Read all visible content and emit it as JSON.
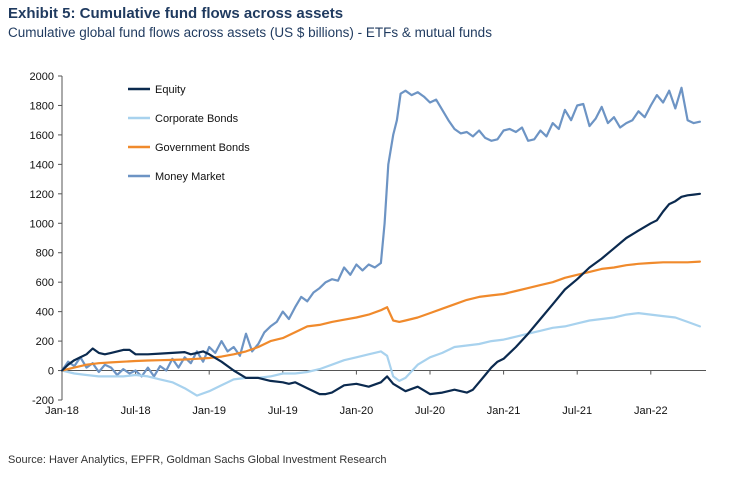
{
  "header": {
    "title": "Exhibit 5: Cumulative fund flows across assets",
    "subtitle": "Cumulative global fund flows across assets (US $ billions) - ETFs & mutual funds"
  },
  "footer": {
    "source": "Source: Haver Analytics, EPFR, Goldman Sachs Global Investment Research"
  },
  "chart_data": {
    "type": "line",
    "title": "Cumulative fund flows across assets",
    "ylabel": "US $ billions",
    "xlabel": "",
    "ylim": [
      -200,
      2000
    ],
    "yticks": [
      -200,
      0,
      200,
      400,
      600,
      800,
      1000,
      1200,
      1400,
      1600,
      1800,
      2000
    ],
    "ytick_labels": [
      "-200",
      "0",
      "200",
      "400",
      "600",
      "800",
      "1000",
      "1200",
      "1400",
      "1600",
      "1800",
      "2000"
    ],
    "x_range_months": [
      0,
      52.5
    ],
    "xtick_positions": [
      0,
      6,
      12,
      18,
      24,
      30,
      36,
      42,
      48
    ],
    "xtick_labels": [
      "Jan-18",
      "Jul-18",
      "Jan-19",
      "Jul-19",
      "Jan-20",
      "Jul-20",
      "Jan-21",
      "Jul-21",
      "Jan-22"
    ],
    "legend_position": "top-left",
    "series": [
      {
        "name": "Equity",
        "color": "#0b2a4f",
        "x": [
          0,
          0.5,
          1,
          1.5,
          2,
          2.5,
          3,
          3.5,
          4,
          4.5,
          5,
          5.5,
          6,
          7,
          8,
          9,
          10,
          10.5,
          11,
          11.5,
          12,
          13,
          14,
          15,
          16,
          17,
          18,
          18.5,
          19,
          20,
          21,
          21.5,
          22,
          23,
          24,
          25,
          26,
          26.5,
          27,
          28,
          29,
          30,
          31,
          32,
          33,
          33.5,
          34,
          34.5,
          35,
          35.5,
          36,
          36.5,
          37,
          38,
          39,
          40,
          41,
          42,
          43,
          44,
          45,
          46,
          47,
          48,
          48.5,
          49,
          49.5,
          50,
          50.5,
          51,
          51.5,
          52
        ],
        "values": [
          0,
          40,
          70,
          90,
          110,
          150,
          120,
          110,
          120,
          130,
          140,
          140,
          110,
          110,
          115,
          120,
          125,
          110,
          120,
          130,
          110,
          60,
          0,
          -50,
          -50,
          -70,
          -80,
          -90,
          -80,
          -120,
          -160,
          -160,
          -150,
          -100,
          -90,
          -110,
          -80,
          -40,
          -90,
          -140,
          -110,
          -160,
          -150,
          -130,
          -150,
          -130,
          -80,
          -30,
          20,
          60,
          80,
          120,
          160,
          250,
          350,
          450,
          550,
          620,
          700,
          760,
          830,
          900,
          950,
          1000,
          1020,
          1080,
          1130,
          1150,
          1180,
          1190,
          1195,
          1200
        ]
      },
      {
        "name": "Corporate Bonds",
        "color": "#a8d2ee",
        "x": [
          0,
          1,
          2,
          3,
          4,
          5,
          6,
          7,
          8,
          9,
          10,
          11,
          12,
          13,
          14,
          15,
          16,
          17,
          18,
          19,
          20,
          21,
          22,
          23,
          24,
          25,
          26,
          26.5,
          27,
          27.5,
          28,
          29,
          30,
          31,
          32,
          33,
          34,
          35,
          36,
          37,
          38,
          39,
          40,
          41,
          42,
          43,
          44,
          45,
          46,
          47,
          48,
          49,
          50,
          51,
          52
        ],
        "values": [
          0,
          -20,
          -30,
          -40,
          -40,
          -40,
          -30,
          -40,
          -60,
          -80,
          -120,
          -170,
          -140,
          -100,
          -60,
          -50,
          -50,
          -40,
          -20,
          -20,
          -10,
          10,
          40,
          70,
          90,
          110,
          130,
          100,
          -40,
          -70,
          -50,
          40,
          90,
          120,
          160,
          170,
          180,
          200,
          210,
          230,
          250,
          270,
          290,
          300,
          320,
          340,
          350,
          360,
          380,
          390,
          380,
          370,
          360,
          330,
          300
        ]
      },
      {
        "name": "Government Bonds",
        "color": "#f08a2c",
        "x": [
          0,
          1,
          2,
          3,
          4,
          5,
          6,
          7,
          8,
          9,
          10,
          11,
          12,
          13,
          14,
          15,
          16,
          17,
          18,
          19,
          20,
          21,
          22,
          23,
          24,
          25,
          26,
          26.5,
          27,
          27.5,
          28,
          29,
          30,
          31,
          32,
          33,
          34,
          35,
          36,
          37,
          38,
          39,
          40,
          41,
          42,
          43,
          44,
          45,
          46,
          47,
          48,
          49,
          50,
          51,
          52
        ],
        "values": [
          0,
          20,
          40,
          50,
          55,
          60,
          65,
          68,
          70,
          72,
          75,
          80,
          85,
          95,
          110,
          130,
          160,
          200,
          220,
          260,
          300,
          310,
          330,
          345,
          360,
          380,
          410,
          430,
          340,
          330,
          340,
          360,
          390,
          420,
          450,
          480,
          500,
          510,
          520,
          540,
          560,
          580,
          600,
          630,
          650,
          670,
          690,
          700,
          715,
          725,
          730,
          735,
          735,
          735,
          740
        ]
      },
      {
        "name": "Money Market",
        "color": "#6d94c4",
        "x": [
          0,
          0.5,
          1,
          1.5,
          2,
          2.5,
          3,
          3.5,
          4,
          4.5,
          5,
          5.5,
          6,
          6.5,
          7,
          7.5,
          8,
          8.5,
          9,
          9.5,
          10,
          10.5,
          11,
          11.5,
          12,
          12.5,
          13,
          13.5,
          14,
          14.5,
          15,
          15.5,
          16,
          16.5,
          17,
          17.5,
          18,
          18.5,
          19,
          19.5,
          20,
          20.5,
          21,
          21.5,
          22,
          22.5,
          23,
          23.5,
          24,
          24.5,
          25,
          25.5,
          26,
          26.3,
          26.6,
          27,
          27.3,
          27.6,
          28,
          28.5,
          29,
          29.5,
          30,
          30.5,
          31,
          31.5,
          32,
          32.5,
          33,
          33.5,
          34,
          34.5,
          35,
          35.5,
          36,
          36.5,
          37,
          37.5,
          38,
          38.5,
          39,
          39.5,
          40,
          40.5,
          41,
          41.5,
          42,
          42.5,
          43,
          43.5,
          44,
          44.5,
          45,
          45.5,
          46,
          46.5,
          47,
          47.5,
          48,
          48.5,
          49,
          49.5,
          50,
          50.5,
          51,
          51.5,
          52
        ],
        "values": [
          0,
          60,
          30,
          90,
          20,
          50,
          -10,
          40,
          20,
          -30,
          10,
          -20,
          0,
          -40,
          20,
          -40,
          30,
          0,
          80,
          20,
          90,
          50,
          130,
          60,
          160,
          120,
          200,
          130,
          160,
          100,
          250,
          130,
          180,
          260,
          300,
          330,
          400,
          350,
          430,
          500,
          470,
          530,
          560,
          600,
          620,
          610,
          700,
          650,
          720,
          680,
          720,
          700,
          730,
          1000,
          1400,
          1600,
          1700,
          1880,
          1900,
          1870,
          1890,
          1860,
          1820,
          1840,
          1770,
          1700,
          1640,
          1610,
          1620,
          1590,
          1630,
          1580,
          1560,
          1570,
          1630,
          1640,
          1620,
          1650,
          1560,
          1570,
          1630,
          1590,
          1680,
          1640,
          1770,
          1700,
          1800,
          1810,
          1660,
          1710,
          1790,
          1680,
          1720,
          1650,
          1680,
          1700,
          1760,
          1720,
          1800,
          1870,
          1820,
          1900,
          1780,
          1920,
          1700,
          1680,
          1690
        ]
      }
    ]
  }
}
